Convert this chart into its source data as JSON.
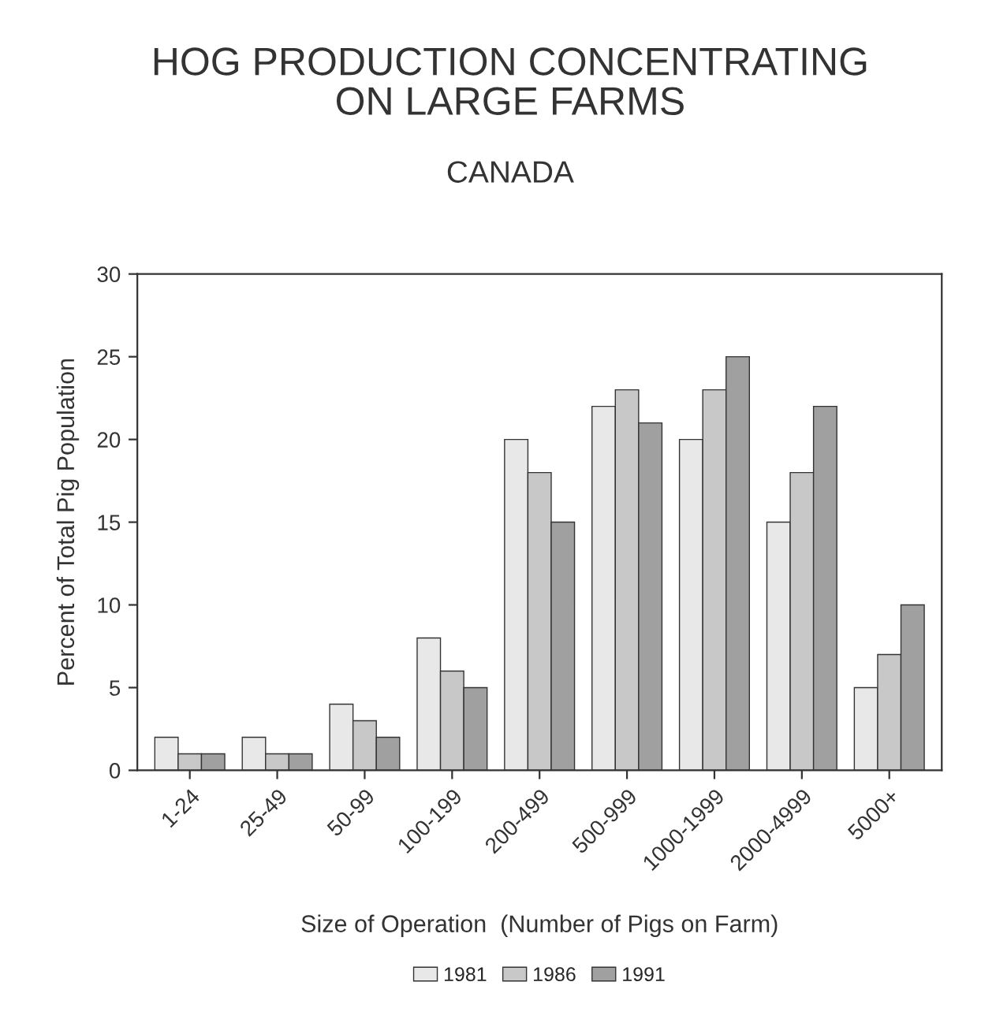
{
  "chart_data": {
    "type": "bar",
    "title": "HOG PRODUCTION CONCENTRATING\nON LARGE FARMS",
    "subtitle": "CANADA",
    "xlabel": "Size of Operation  (Number of Pigs on Farm)",
    "ylabel": "Percent of Total Pig Population",
    "categories": [
      "1-24",
      "25-49",
      "50-99",
      "100-199",
      "200-499",
      "500-999",
      "1000-1999",
      "2000-4999",
      "5000+"
    ],
    "series": [
      {
        "name": "1981",
        "color": "#e8e8e8",
        "values": [
          2,
          2,
          4,
          8,
          20,
          22,
          20,
          15,
          5
        ]
      },
      {
        "name": "1986",
        "color": "#c8c8c8",
        "values": [
          1,
          1,
          3,
          6,
          18,
          23,
          23,
          18,
          7
        ]
      },
      {
        "name": "1991",
        "color": "#a0a0a0",
        "values": [
          1,
          1,
          2,
          5,
          15,
          21,
          25,
          22,
          10
        ]
      }
    ],
    "ylim": [
      0,
      30
    ],
    "yticks": [
      0,
      5,
      10,
      15,
      20,
      25,
      30
    ],
    "grid": false,
    "legend": "bottom"
  }
}
